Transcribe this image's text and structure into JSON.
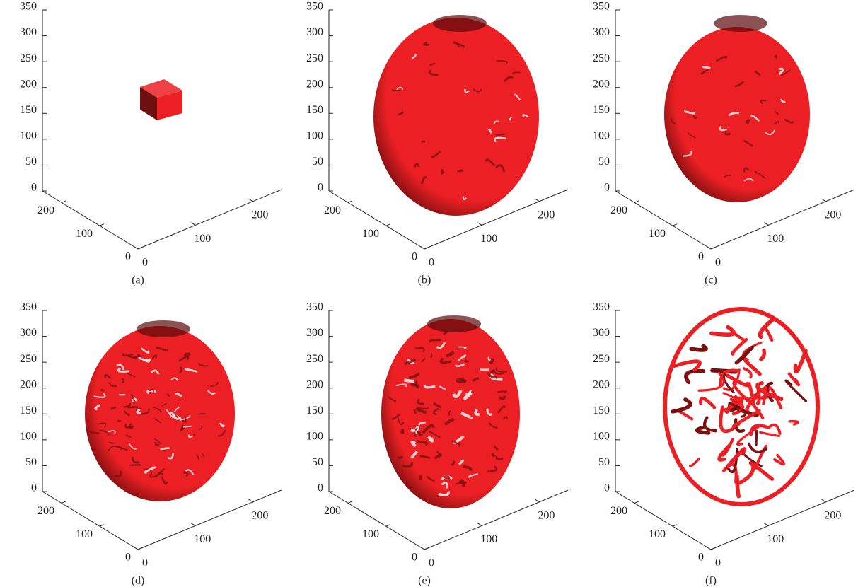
{
  "chart_data": [
    {
      "type": "surface3d",
      "caption": "(a)",
      "color": "#ec2024",
      "xlim": [
        0,
        250
      ],
      "ylim": [
        0,
        250
      ],
      "zlim": [
        0,
        350
      ],
      "xticks": [
        0,
        100,
        200
      ],
      "yticks": [
        0,
        100,
        200
      ],
      "zticks": [
        0,
        50,
        100,
        150,
        200,
        250,
        300,
        350
      ]
    },
    {
      "type": "surface3d",
      "caption": "(b)",
      "color": "#ec2024",
      "xlim": [
        0,
        250
      ],
      "ylim": [
        0,
        250
      ],
      "zlim": [
        0,
        350
      ],
      "xticks": [
        0,
        100,
        200
      ],
      "yticks": [
        0,
        100,
        200
      ],
      "zticks": [
        0,
        50,
        100,
        150,
        200,
        250,
        300,
        350
      ]
    },
    {
      "type": "surface3d",
      "caption": "(c)",
      "color": "#ec2024",
      "xlim": [
        0,
        250
      ],
      "ylim": [
        0,
        250
      ],
      "zlim": [
        0,
        350
      ],
      "xticks": [
        0,
        100,
        200
      ],
      "yticks": [
        0,
        100,
        200
      ],
      "zticks": [
        0,
        50,
        100,
        150,
        200,
        250,
        300,
        350
      ]
    },
    {
      "type": "surface3d",
      "caption": "(d)",
      "color": "#ec2024",
      "xlim": [
        0,
        250
      ],
      "ylim": [
        0,
        250
      ],
      "zlim": [
        0,
        350
      ],
      "xticks": [
        0,
        100,
        200
      ],
      "yticks": [
        0,
        100,
        200
      ],
      "zticks": [
        0,
        50,
        100,
        150,
        200,
        250,
        300,
        350
      ]
    },
    {
      "type": "surface3d",
      "caption": "(e)",
      "color": "#ec2024",
      "xlim": [
        0,
        250
      ],
      "ylim": [
        0,
        250
      ],
      "zlim": [
        0,
        350
      ],
      "xticks": [
        0,
        100,
        200
      ],
      "yticks": [
        0,
        100,
        200
      ],
      "zticks": [
        0,
        50,
        100,
        150,
        200,
        250,
        300,
        350
      ]
    },
    {
      "type": "surface3d",
      "caption": "(f)",
      "color": "#ec2024",
      "xlim": [
        0,
        250
      ],
      "ylim": [
        0,
        250
      ],
      "zlim": [
        0,
        350
      ],
      "xticks": [
        0,
        100,
        200
      ],
      "yticks": [
        0,
        100,
        200
      ],
      "zticks": [
        0,
        50,
        100,
        150,
        200,
        250,
        300,
        350
      ]
    }
  ]
}
